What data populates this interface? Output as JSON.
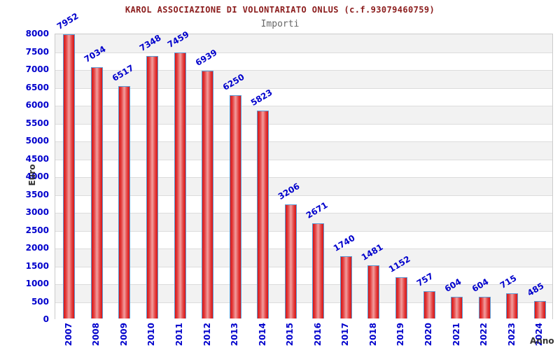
{
  "header": {
    "title": "KAROL ASSOCIAZIONE DI VOLONTARIATO ONLUS (c.f.93079460759)",
    "subtitle": "Importi"
  },
  "chart_data": {
    "type": "bar",
    "title": "KAROL ASSOCIAZIONE DI VOLONTARIATO ONLUS (c.f.93079460759)",
    "subtitle": "Importi",
    "xlabel": "Anno",
    "ylabel": "Euro",
    "categories": [
      "2007",
      "2008",
      "2009",
      "2010",
      "2011",
      "2012",
      "2013",
      "2014",
      "2015",
      "2016",
      "2017",
      "2018",
      "2019",
      "2020",
      "2021",
      "2022",
      "2023",
      "2024"
    ],
    "values": [
      7952,
      7034,
      6517,
      7348,
      7459,
      6939,
      6250,
      5823,
      3206,
      2671,
      1740,
      1481,
      1152,
      757,
      604,
      604,
      715,
      485
    ],
    "ylim": [
      0,
      8000
    ],
    "ytick_step": 500,
    "grid": true,
    "banded_background": true,
    "legend": false,
    "bar_value_labels_rotated_deg": -31,
    "colors": {
      "title_red": "#8b1c1c",
      "subtitle_gray": "#666666",
      "tick_blue": "#0000cc",
      "axis_name": "#333333",
      "band_gray": "#f2f2f2",
      "grid_line": "#dcdcdc",
      "plot_border": "#cccccc",
      "bar_border": "#5b9bd5",
      "bar_edge": "#d81414",
      "bar_center": "#f29e9e"
    }
  }
}
